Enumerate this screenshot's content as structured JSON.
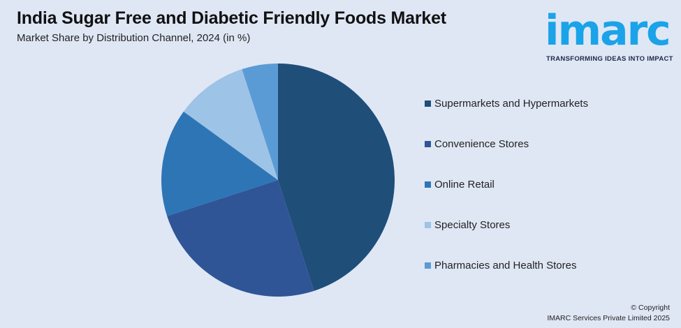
{
  "header": {
    "title": "India Sugar Free and Diabetic Friendly Foods Market",
    "subtitle": "Market Share by Distribution Channel, 2024 (in %)"
  },
  "logo": {
    "wordmark": "imarc",
    "tagline": "TRANSFORMING IDEAS INTO IMPACT"
  },
  "chart_data": {
    "type": "pie",
    "title": "India Sugar Free and Diabetic Friendly Foods Market",
    "subtitle": "Market Share by Distribution Channel, 2024 (in %)",
    "legend_position": "right",
    "slices": [
      {
        "label": "Supermarkets and Hypermarkets",
        "value": 45,
        "color": "#1f4e79"
      },
      {
        "label": "Convenience Stores",
        "value": 25,
        "color": "#2f5597"
      },
      {
        "label": "Online Retail",
        "value": 15,
        "color": "#2e75b6"
      },
      {
        "label": "Specialty Stores",
        "value": 10,
        "color": "#9dc3e6"
      },
      {
        "label": "Pharmacies and Health Stores",
        "value": 5,
        "color": "#5b9bd5"
      }
    ]
  },
  "footer": {
    "copyright_line1": "© Copyright",
    "copyright_line2": "IMARC Services Private Limited 2025"
  }
}
